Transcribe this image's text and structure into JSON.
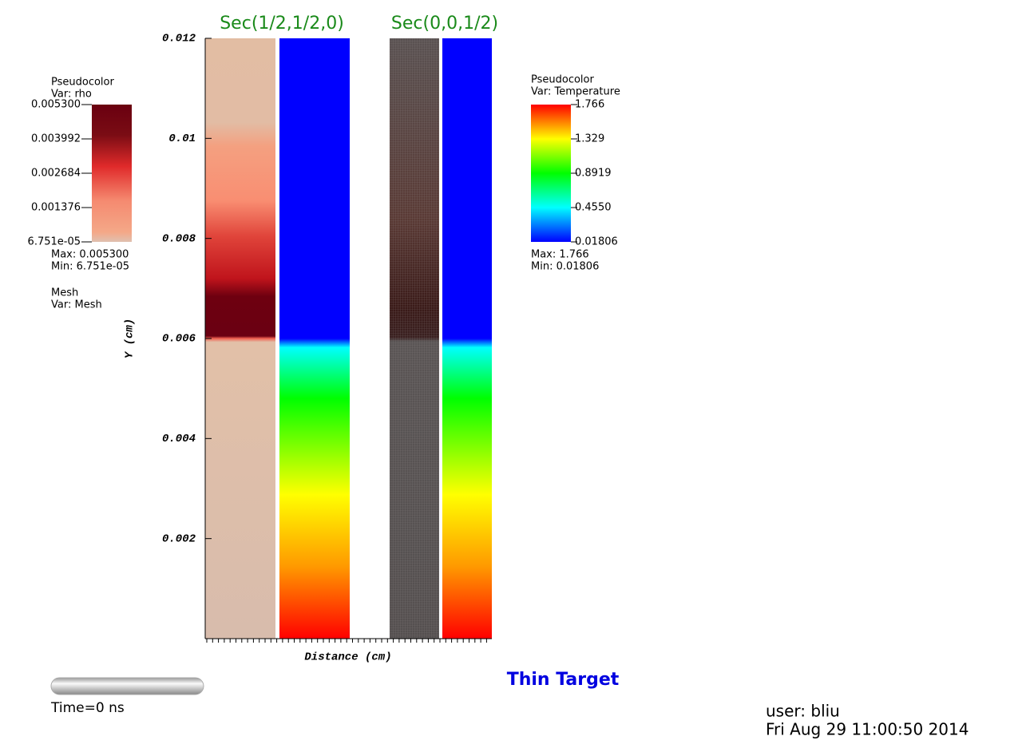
{
  "chart_data": {
    "type": "pseudocolor",
    "panel_titles": [
      "Sec(1/2,1/2,0)",
      "Sec(0,0,1/2)"
    ],
    "xlabel": "Distance (cm)",
    "ylabel": "Y (cm)",
    "ylim": [
      0,
      0.012
    ],
    "yticks": [
      0.002,
      0.004,
      0.006,
      0.008,
      0.01,
      0.012
    ],
    "annotation": "Thin Target",
    "time": "Time=0 ns",
    "user": "user: bliu",
    "date": "Fri Aug 29 11:00:50 2014",
    "legends": [
      {
        "plot": "Pseudocolor",
        "var": "Var: rho",
        "ticks": [
          {
            "value": 0.0053,
            "label": "0.005300"
          },
          0.003992,
          0.002684,
          0.001376,
          {
            "value": 6.751e-05,
            "label": "6.751e-05"
          }
        ],
        "max": "Max:  0.005300",
        "min": "Min:  6.751e-05"
      },
      {
        "plot": "Pseudocolor",
        "var": "Var: Temperature",
        "ticks": [
          1.766,
          1.329,
          0.8919,
          {
            "value": 0.455,
            "label": "0.4550"
          },
          0.01806
        ],
        "max": "Max:  1.766",
        "min": "Min:  0.01806"
      }
    ],
    "mesh_legend": {
      "plot": "Mesh",
      "var": "Var: Mesh"
    }
  }
}
